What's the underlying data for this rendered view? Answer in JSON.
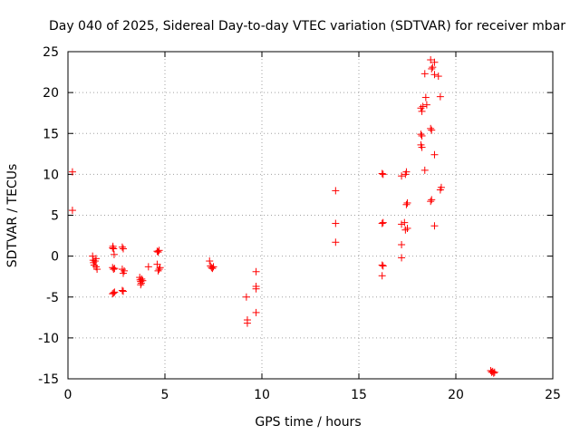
{
  "chart_data": {
    "type": "scatter",
    "title": "Day 040 of 2025, Sidereal Day-to-day VTEC variation (SDTVAR) for receiver mbar",
    "xlabel": "GPS time / hours",
    "ylabel": "SDTVAR / TECUs",
    "xlim": [
      0,
      25
    ],
    "ylim": [
      -15,
      25
    ],
    "x_ticks": [
      0,
      5,
      10,
      15,
      20,
      25
    ],
    "y_ticks": [
      -15,
      -10,
      -5,
      0,
      5,
      10,
      15,
      20,
      25
    ],
    "x_tick_labels": [
      "0",
      "5",
      "10",
      "15",
      "20",
      "25"
    ],
    "y_tick_labels": [
      "-15",
      "-10",
      "-5",
      "0",
      "5",
      "10",
      "15",
      "20",
      "25"
    ],
    "grid": true,
    "marker": "+",
    "marker_color": "#ff0000",
    "series": [
      {
        "name": "SDTVAR",
        "points": [
          [
            0.23,
            10.3
          ],
          [
            0.23,
            5.6
          ],
          [
            1.27,
            0.0
          ],
          [
            1.3,
            -0.5
          ],
          [
            1.32,
            -0.8
          ],
          [
            1.35,
            -1.1
          ],
          [
            1.4,
            -0.6
          ],
          [
            1.45,
            -1.3
          ],
          [
            1.5,
            -1.6
          ],
          [
            1.45,
            -0.3
          ],
          [
            2.3,
            1.0
          ],
          [
            2.32,
            1.2
          ],
          [
            2.35,
            0.9
          ],
          [
            2.38,
            0.2
          ],
          [
            2.3,
            -1.4
          ],
          [
            2.35,
            -1.6
          ],
          [
            2.4,
            -1.5
          ],
          [
            2.3,
            -4.6
          ],
          [
            2.35,
            -4.5
          ],
          [
            2.4,
            -4.4
          ],
          [
            2.8,
            1.1
          ],
          [
            2.85,
            0.9
          ],
          [
            2.8,
            -1.6
          ],
          [
            2.85,
            -2.1
          ],
          [
            2.9,
            -1.8
          ],
          [
            2.8,
            -4.2
          ],
          [
            2.85,
            -4.3
          ],
          [
            3.7,
            -2.6
          ],
          [
            3.72,
            -2.9
          ],
          [
            3.75,
            -3.1
          ],
          [
            3.78,
            -3.3
          ],
          [
            3.8,
            -2.8
          ],
          [
            3.85,
            -3.0
          ],
          [
            3.75,
            -3.5
          ],
          [
            4.15,
            -1.3
          ],
          [
            4.6,
            0.6
          ],
          [
            4.65,
            0.5
          ],
          [
            4.7,
            0.7
          ],
          [
            4.6,
            -1.0
          ],
          [
            4.65,
            -1.8
          ],
          [
            4.7,
            -1.6
          ],
          [
            4.75,
            -1.4
          ],
          [
            7.3,
            -0.6
          ],
          [
            7.35,
            -1.2
          ],
          [
            7.4,
            -1.4
          ],
          [
            7.45,
            -1.5
          ],
          [
            7.5,
            -1.3
          ],
          [
            9.2,
            -5.0
          ],
          [
            9.25,
            -7.8
          ],
          [
            9.25,
            -8.2
          ],
          [
            9.7,
            -1.9
          ],
          [
            9.7,
            -3.7
          ],
          [
            9.7,
            -4.0
          ],
          [
            9.7,
            -6.9
          ],
          [
            13.8,
            8.0
          ],
          [
            13.8,
            4.0
          ],
          [
            13.8,
            1.7
          ],
          [
            16.2,
            10.1
          ],
          [
            16.25,
            10.0
          ],
          [
            16.2,
            4.0
          ],
          [
            16.25,
            4.1
          ],
          [
            16.2,
            -1.1
          ],
          [
            16.25,
            -1.2
          ],
          [
            16.2,
            -2.4
          ],
          [
            17.2,
            9.8
          ],
          [
            17.4,
            10.0
          ],
          [
            17.45,
            10.3
          ],
          [
            17.2,
            3.9
          ],
          [
            17.35,
            4.1
          ],
          [
            17.4,
            3.2
          ],
          [
            17.5,
            3.4
          ],
          [
            17.45,
            6.3
          ],
          [
            17.5,
            6.5
          ],
          [
            17.2,
            1.4
          ],
          [
            17.2,
            -0.2
          ],
          [
            18.2,
            18.1
          ],
          [
            18.25,
            17.7
          ],
          [
            18.3,
            18.3
          ],
          [
            18.2,
            14.9
          ],
          [
            18.25,
            14.7
          ],
          [
            18.2,
            13.6
          ],
          [
            18.25,
            13.3
          ],
          [
            18.4,
            10.5
          ],
          [
            18.45,
            19.4
          ],
          [
            18.5,
            18.5
          ],
          [
            18.4,
            22.3
          ],
          [
            18.7,
            24.0
          ],
          [
            18.75,
            22.9
          ],
          [
            18.8,
            23.1
          ],
          [
            18.9,
            23.7
          ],
          [
            18.9,
            22.2
          ],
          [
            19.1,
            22.0
          ],
          [
            18.7,
            15.6
          ],
          [
            18.75,
            15.4
          ],
          [
            18.7,
            6.7
          ],
          [
            18.75,
            6.9
          ],
          [
            18.9,
            12.4
          ],
          [
            18.9,
            3.7
          ],
          [
            19.2,
            19.5
          ],
          [
            19.2,
            8.1
          ],
          [
            19.25,
            8.4
          ],
          [
            21.8,
            -14.0
          ],
          [
            21.85,
            -14.2
          ],
          [
            21.9,
            -14.1
          ],
          [
            21.95,
            -14.3
          ],
          [
            22.0,
            -14.2
          ]
        ]
      }
    ]
  }
}
